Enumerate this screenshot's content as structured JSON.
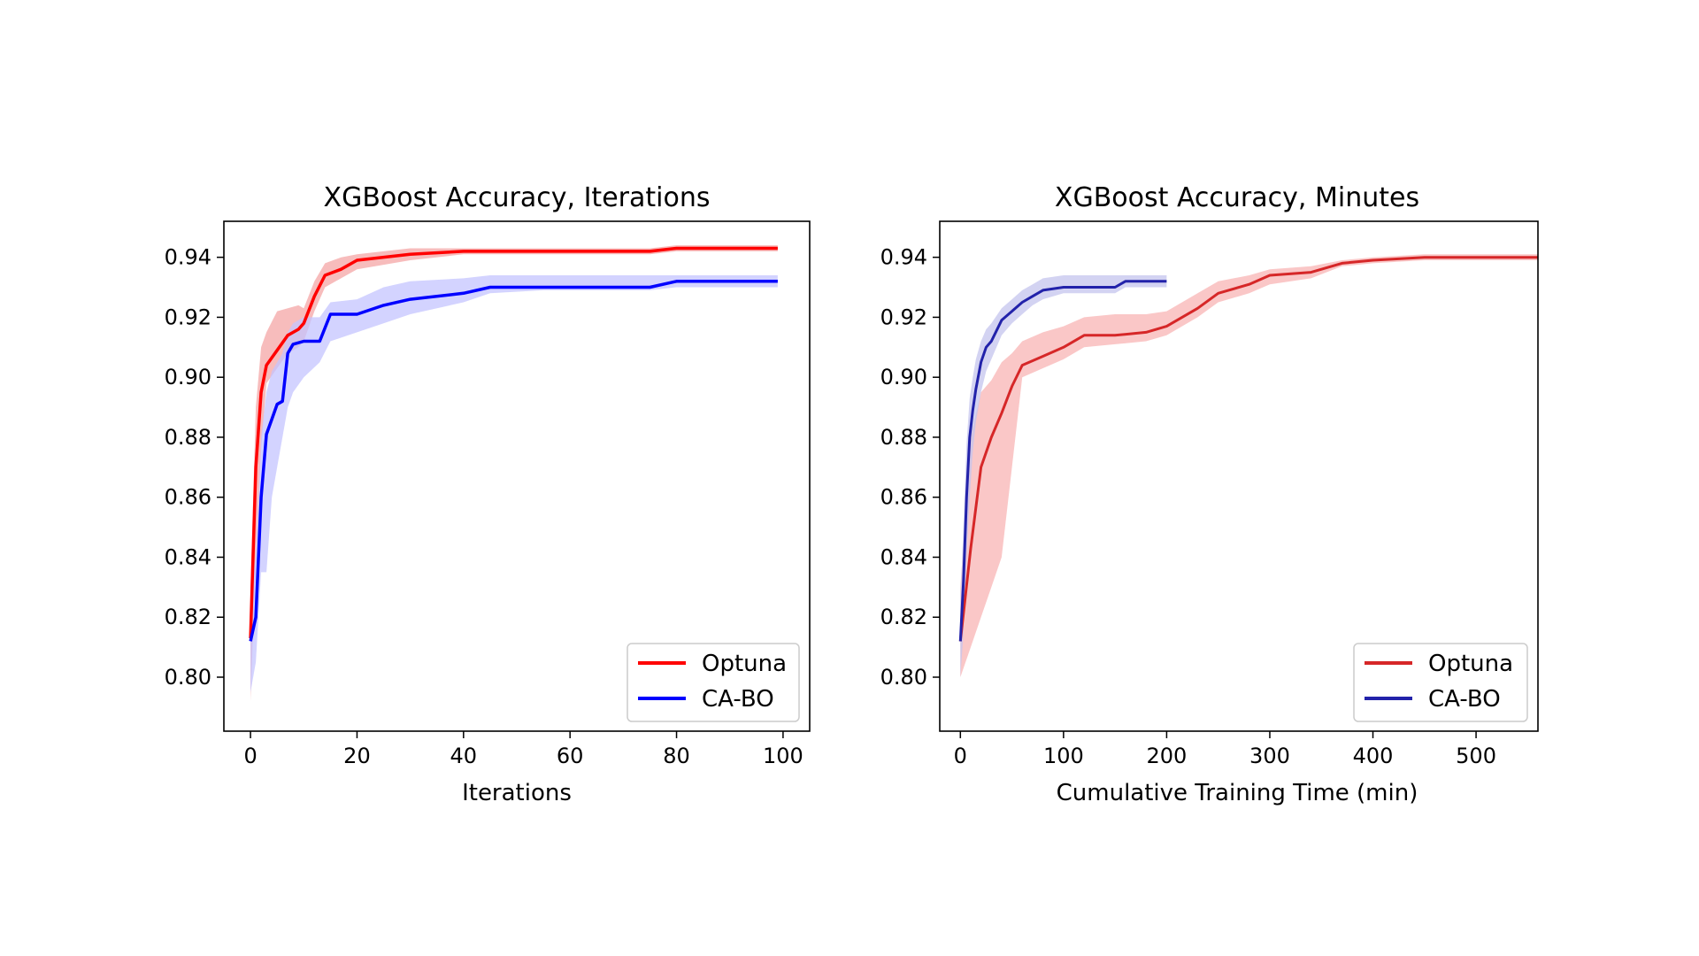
{
  "chart_data": [
    {
      "type": "line",
      "title": "XGBoost Accuracy, Iterations",
      "xlabel": "Iterations",
      "ylabel": "",
      "xlim": [
        -5,
        105
      ],
      "ylim": [
        0.782,
        0.952
      ],
      "xticks": [
        0,
        20,
        40,
        60,
        80,
        100
      ],
      "xtick_labels": [
        "0",
        "20",
        "40",
        "60",
        "80",
        "100"
      ],
      "yticks": [
        0.8,
        0.82,
        0.84,
        0.86,
        0.88,
        0.9,
        0.92,
        0.94
      ],
      "ytick_labels": [
        "0.80",
        "0.82",
        "0.84",
        "0.86",
        "0.88",
        "0.90",
        "0.92",
        "0.94"
      ],
      "grid": false,
      "legend": "lower-right",
      "series": [
        {
          "name": "Optuna",
          "color": "#ff0000",
          "band_color": "#f4a6a6",
          "x": [
            0,
            1,
            2,
            3,
            5,
            7,
            9,
            10,
            12,
            14,
            17,
            20,
            30,
            40,
            60,
            75,
            80,
            99
          ],
          "y": [
            0.813,
            0.87,
            0.895,
            0.904,
            0.909,
            0.914,
            0.916,
            0.918,
            0.927,
            0.934,
            0.936,
            0.939,
            0.941,
            0.942,
            0.942,
            0.942,
            0.943,
            0.943
          ],
          "lower": [
            0.792,
            0.84,
            0.876,
            0.898,
            0.903,
            0.908,
            0.91,
            0.912,
            0.922,
            0.93,
            0.933,
            0.936,
            0.939,
            0.941,
            0.941,
            0.941,
            0.942,
            0.942
          ],
          "upper": [
            0.83,
            0.89,
            0.91,
            0.915,
            0.922,
            0.923,
            0.924,
            0.923,
            0.932,
            0.938,
            0.94,
            0.941,
            0.943,
            0.943,
            0.943,
            0.943,
            0.944,
            0.944
          ]
        },
        {
          "name": "CA-BO",
          "color": "#0000ff",
          "band_color": "#c4c4ff",
          "x": [
            0,
            1,
            2,
            3,
            4,
            5,
            6,
            7,
            8,
            10,
            13,
            15,
            20,
            25,
            30,
            40,
            45,
            55,
            75,
            80,
            99
          ],
          "y": [
            0.812,
            0.82,
            0.86,
            0.881,
            0.886,
            0.891,
            0.892,
            0.908,
            0.911,
            0.912,
            0.912,
            0.921,
            0.921,
            0.924,
            0.926,
            0.928,
            0.93,
            0.93,
            0.93,
            0.932,
            0.932
          ],
          "lower": [
            0.795,
            0.805,
            0.835,
            0.835,
            0.86,
            0.87,
            0.88,
            0.89,
            0.895,
            0.9,
            0.905,
            0.912,
            0.915,
            0.918,
            0.921,
            0.925,
            0.928,
            0.929,
            0.929,
            0.93,
            0.93
          ],
          "upper": [
            0.83,
            0.84,
            0.88,
            0.895,
            0.902,
            0.905,
            0.908,
            0.915,
            0.918,
            0.92,
            0.92,
            0.925,
            0.926,
            0.93,
            0.932,
            0.933,
            0.934,
            0.934,
            0.934,
            0.934,
            0.934
          ]
        }
      ]
    },
    {
      "type": "line",
      "title": "XGBoost Accuracy, Minutes",
      "xlabel": "Cumulative Training Time (min)",
      "ylabel": "",
      "xlim": [
        -20,
        560
      ],
      "ylim": [
        0.782,
        0.952
      ],
      "xticks": [
        0,
        100,
        200,
        300,
        400,
        500
      ],
      "xtick_labels": [
        "0",
        "100",
        "200",
        "300",
        "400",
        "500"
      ],
      "yticks": [
        0.8,
        0.82,
        0.84,
        0.86,
        0.88,
        0.9,
        0.92,
        0.94
      ],
      "ytick_labels": [
        "0.80",
        "0.82",
        "0.84",
        "0.86",
        "0.88",
        "0.90",
        "0.92",
        "0.94"
      ],
      "grid": false,
      "legend": "lower-right",
      "series": [
        {
          "name": "Optuna",
          "color": "#d62728",
          "band_color": "#f8b4b4",
          "x": [
            0,
            10,
            20,
            30,
            40,
            50,
            60,
            80,
            100,
            120,
            150,
            180,
            200,
            230,
            250,
            280,
            300,
            340,
            370,
            400,
            450,
            500,
            560
          ],
          "y": [
            0.812,
            0.843,
            0.87,
            0.88,
            0.888,
            0.897,
            0.904,
            0.907,
            0.91,
            0.914,
            0.914,
            0.915,
            0.917,
            0.923,
            0.928,
            0.931,
            0.934,
            0.935,
            0.938,
            0.939,
            0.94,
            0.94,
            0.94
          ],
          "lower": [
            0.8,
            0.81,
            0.82,
            0.83,
            0.84,
            0.87,
            0.9,
            0.903,
            0.906,
            0.91,
            0.911,
            0.912,
            0.914,
            0.92,
            0.925,
            0.928,
            0.931,
            0.933,
            0.937,
            0.938,
            0.939,
            0.939,
            0.939
          ],
          "upper": [
            0.83,
            0.88,
            0.895,
            0.899,
            0.905,
            0.908,
            0.912,
            0.915,
            0.917,
            0.92,
            0.921,
            0.921,
            0.922,
            0.928,
            0.932,
            0.934,
            0.936,
            0.937,
            0.939,
            0.94,
            0.941,
            0.941,
            0.941
          ]
        },
        {
          "name": "CA-BO",
          "color": "#2222aa",
          "band_color": "#c4c4ee",
          "x": [
            0,
            3,
            6,
            9,
            12,
            15,
            20,
            25,
            30,
            40,
            50,
            60,
            70,
            80,
            100,
            120,
            150,
            160,
            200
          ],
          "y": [
            0.812,
            0.832,
            0.86,
            0.88,
            0.889,
            0.896,
            0.905,
            0.91,
            0.912,
            0.919,
            0.922,
            0.925,
            0.927,
            0.929,
            0.93,
            0.93,
            0.93,
            0.932,
            0.932
          ],
          "lower": [
            0.8,
            0.815,
            0.84,
            0.86,
            0.875,
            0.885,
            0.895,
            0.902,
            0.906,
            0.914,
            0.918,
            0.921,
            0.924,
            0.926,
            0.928,
            0.928,
            0.928,
            0.93,
            0.93
          ],
          "upper": [
            0.825,
            0.85,
            0.878,
            0.893,
            0.9,
            0.906,
            0.912,
            0.916,
            0.918,
            0.923,
            0.926,
            0.929,
            0.931,
            0.933,
            0.934,
            0.934,
            0.934,
            0.934,
            0.934
          ]
        }
      ]
    }
  ]
}
